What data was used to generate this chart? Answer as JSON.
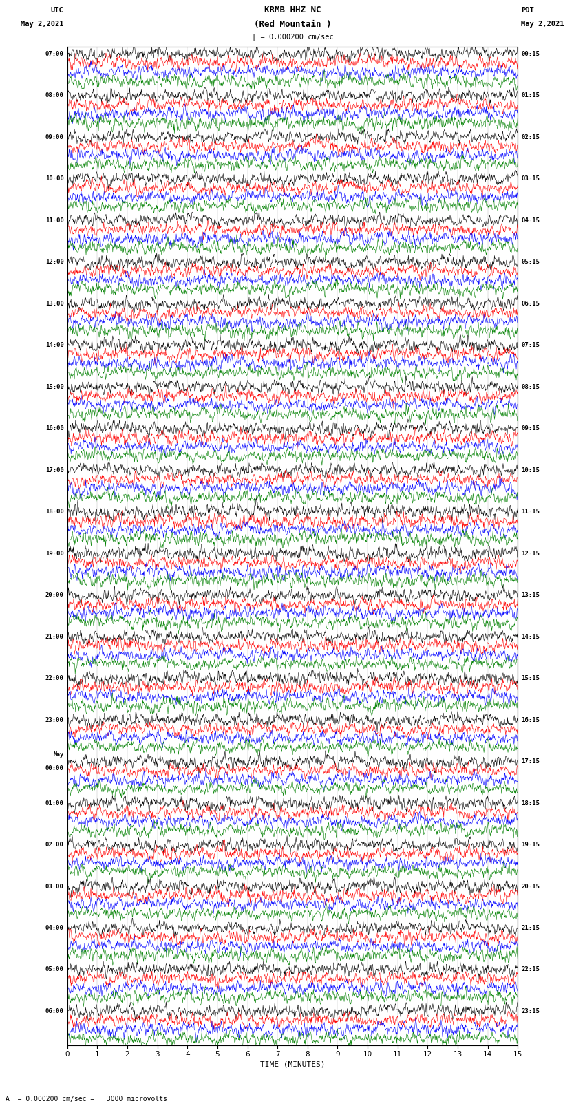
{
  "title_line1": "KRMB HHZ NC",
  "title_line2": "(Red Mountain )",
  "scale_text": "| = 0.000200 cm/sec",
  "left_header": "UTC",
  "left_date": "May 2,2021",
  "right_header": "PDT",
  "right_date": "May 2,2021",
  "left_times": [
    "07:00",
    "08:00",
    "09:00",
    "10:00",
    "11:00",
    "12:00",
    "13:00",
    "14:00",
    "15:00",
    "16:00",
    "17:00",
    "18:00",
    "19:00",
    "20:00",
    "21:00",
    "22:00",
    "23:00",
    "May\n00:00",
    "01:00",
    "02:00",
    "03:00",
    "04:00",
    "05:00",
    "06:00"
  ],
  "right_times": [
    "00:15",
    "01:15",
    "02:15",
    "03:15",
    "04:15",
    "05:15",
    "06:15",
    "07:15",
    "08:15",
    "09:15",
    "10:15",
    "11:15",
    "12:15",
    "13:15",
    "14:15",
    "15:15",
    "16:15",
    "17:15",
    "18:15",
    "19:15",
    "20:15",
    "21:15",
    "22:15",
    "23:15"
  ],
  "trace_colors": [
    "black",
    "red",
    "blue",
    "green"
  ],
  "background_color": "white",
  "n_groups": 24,
  "n_traces_per_group": 4,
  "x_ticks": [
    0,
    1,
    2,
    3,
    4,
    5,
    6,
    7,
    8,
    9,
    10,
    11,
    12,
    13,
    14,
    15
  ],
  "x_label": "TIME (MINUTES)",
  "fig_width": 8.5,
  "fig_height": 16.13,
  "bottom_note": "A  = 0.000200 cm/sec =   3000 microvolts"
}
